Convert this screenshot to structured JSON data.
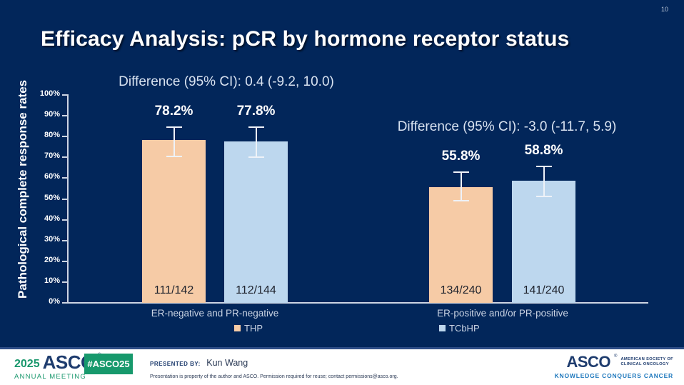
{
  "page_number": "10",
  "title": "Efficacy Analysis: pCR by hormone receptor status",
  "chart_data": {
    "type": "bar",
    "title": "Efficacy Analysis: pCR by hormone receptor status",
    "xlabel": "",
    "ylabel": "Pathological complete response rates",
    "ylim": [
      0,
      100
    ],
    "grid": false,
    "y_ticks": [
      "0%",
      "10%",
      "20%",
      "30%",
      "40%",
      "50%",
      "60%",
      "70%",
      "80%",
      "90%",
      "100%"
    ],
    "legend_position": "bottom",
    "legend": [
      {
        "label": "THP",
        "color": "#f6cba6"
      },
      {
        "label": "TCbHP",
        "color": "#bdd7ee"
      }
    ],
    "groups": [
      {
        "category": "ER-negative and PR-negative",
        "difference_label": "Difference (95% CI): 0.4 (-9.2, 10.0)",
        "bars": [
          {
            "series": "THP",
            "value": 78.2,
            "value_label": "78.2%",
            "count_label": "111/142",
            "ci_low": 70.1,
            "ci_high": 84.9
          },
          {
            "series": "TCbHP",
            "value": 77.8,
            "value_label": "77.8%",
            "count_label": "112/144",
            "ci_low": 69.8,
            "ci_high": 84.9
          }
        ]
      },
      {
        "category": "ER-positive and/or PR-positive",
        "difference_label": "Difference (95% CI): -3.0 (-11.7, 5.9)",
        "bars": [
          {
            "series": "THP",
            "value": 55.8,
            "value_label": "55.8%",
            "count_label": "134/240",
            "ci_low": 48.8,
            "ci_high": 63.2
          },
          {
            "series": "TCbHP",
            "value": 58.8,
            "value_label": "58.8%",
            "count_label": "141/240",
            "ci_low": 51.0,
            "ci_high": 66.0
          }
        ]
      }
    ]
  },
  "colors": {
    "background": "#02265a",
    "thp_bar": "#f6cba6",
    "tcbhp_bar": "#bdd7ee",
    "asco_green": "#17996c",
    "asco_navy": "#1e3c6e",
    "tagline_blue": "#1e78bd"
  },
  "footer": {
    "year": "2025",
    "asco_wordmark": "ASCO",
    "registered_mark": "®",
    "annual_meeting": "ANNUAL MEETING",
    "hashtag": "#ASCO25",
    "presented_by_label": "PRESENTED BY:",
    "presenter": "Kun Wang",
    "disclaimer": "Presentation is property of the author and ASCO. Permission required for reuse; contact permissions@asco.org.",
    "logo_wordmark": "ASCO",
    "society_line1": "AMERICAN SOCIETY OF",
    "society_line2": "CLINICAL ONCOLOGY",
    "tagline": "KNOWLEDGE CONQUERS CANCER"
  }
}
